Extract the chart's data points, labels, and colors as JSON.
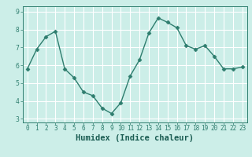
{
  "xlabel": "Humidex (Indice chaleur)",
  "ylabel": "",
  "x": [
    0,
    1,
    2,
    3,
    4,
    5,
    6,
    7,
    8,
    9,
    10,
    11,
    12,
    13,
    14,
    15,
    16,
    17,
    18,
    19,
    20,
    21,
    22,
    23
  ],
  "y": [
    5.8,
    6.9,
    7.6,
    7.9,
    5.8,
    5.3,
    4.5,
    4.3,
    3.6,
    3.3,
    3.9,
    5.4,
    6.3,
    7.8,
    8.65,
    8.4,
    8.1,
    7.1,
    6.9,
    7.1,
    6.5,
    5.8,
    5.8,
    5.9
  ],
  "line_color": "#2e7d6e",
  "marker": "D",
  "marker_size": 2.5,
  "line_width": 1.0,
  "bg_color": "#cceee8",
  "grid_color": "#ffffff",
  "tick_color": "#2e7d6e",
  "label_color": "#1a5c52",
  "ylim": [
    2.8,
    9.3
  ],
  "yticks": [
    3,
    4,
    5,
    6,
    7,
    8,
    9
  ],
  "xtick_labels": [
    "0",
    "1",
    "2",
    "3",
    "4",
    "5",
    "6",
    "7",
    "8",
    "9",
    "10",
    "11",
    "12",
    "13",
    "14",
    "15",
    "16",
    "17",
    "18",
    "19",
    "20",
    "21",
    "22",
    "23"
  ],
  "axis_fontsize": 6.5,
  "tick_fontsize": 5.5,
  "xlabel_fontsize": 7.5
}
